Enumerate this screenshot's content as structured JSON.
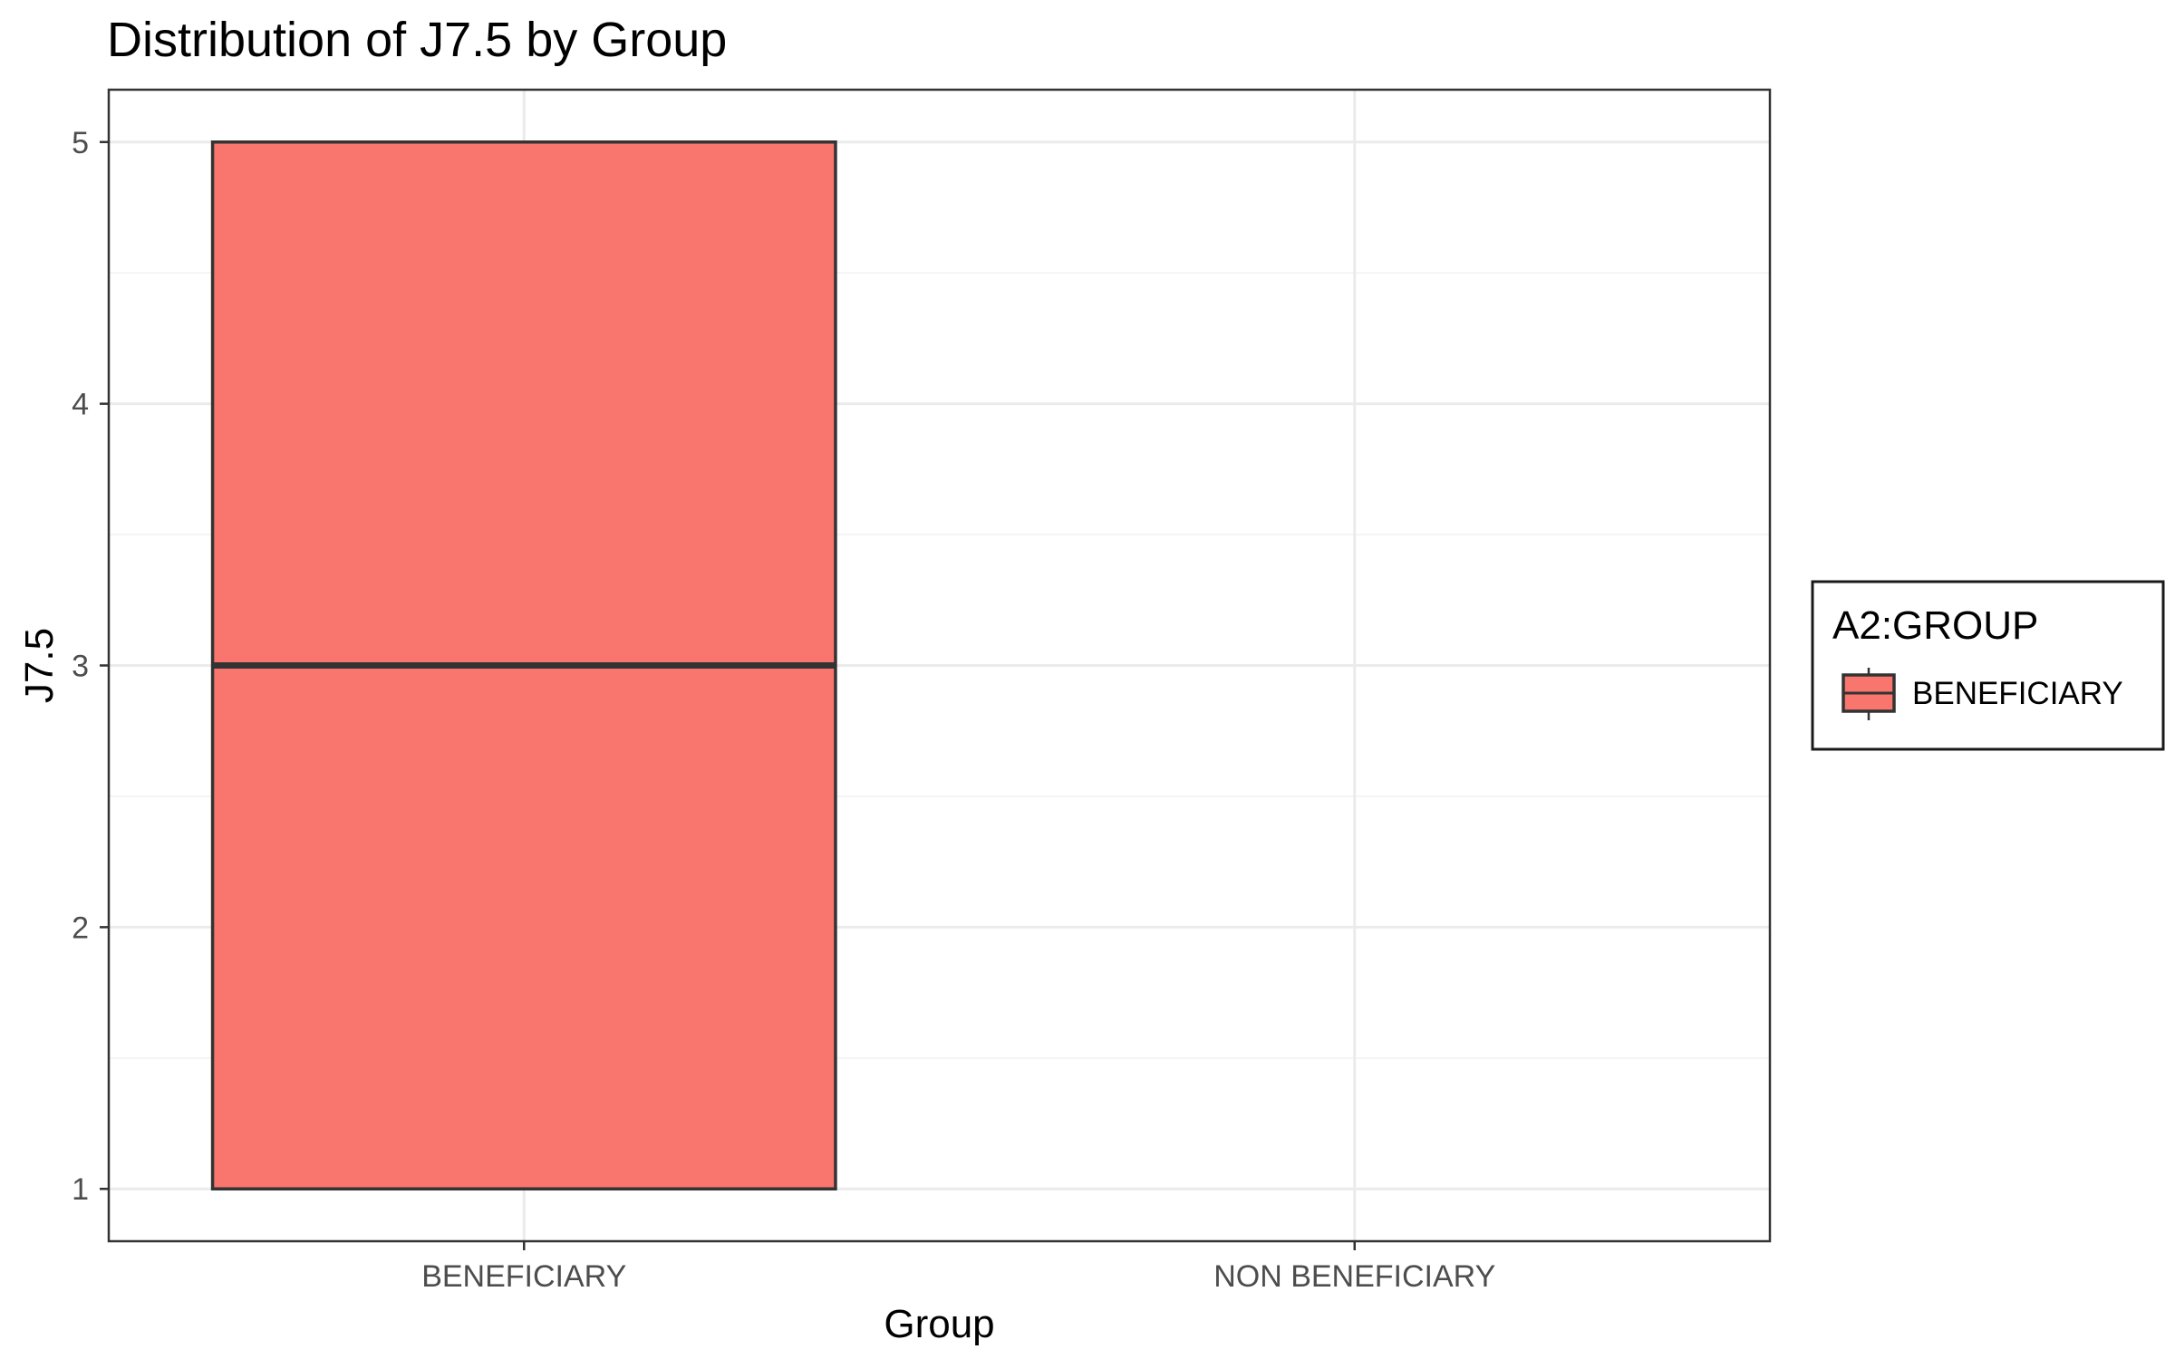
{
  "chart_data": {
    "type": "boxplot",
    "title": "Distribution of J7.5 by Group",
    "xlabel": "Group",
    "ylabel": "J7.5",
    "categories": [
      "BENEFICIARY",
      "NON BENEFICIARY"
    ],
    "yticks": [
      "1",
      "2",
      "3",
      "4",
      "5"
    ],
    "ylim": [
      0.8,
      5.2
    ],
    "grid": true,
    "legend": {
      "title": "A2:GROUP",
      "position": "right",
      "entries": [
        "BENEFICIARY"
      ]
    },
    "series": [
      {
        "name": "BENEFICIARY",
        "category": "BENEFICIARY",
        "min": 1,
        "q1": 1,
        "median": 3,
        "q3": 5,
        "max": 5,
        "color": "#F8766D"
      }
    ]
  }
}
